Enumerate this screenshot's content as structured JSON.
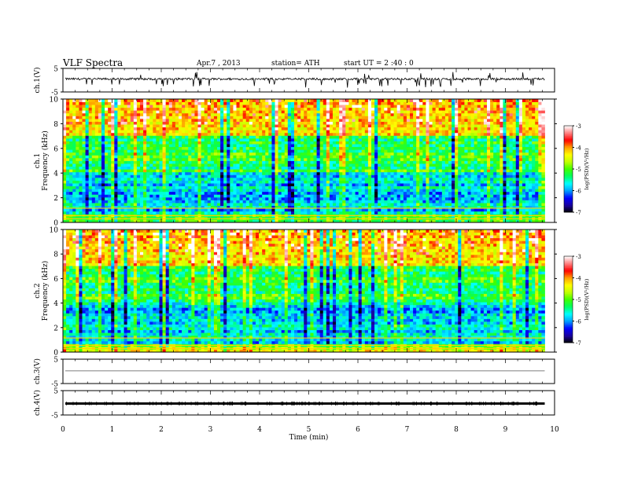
{
  "header": {
    "title": "VLF  Spectra",
    "date": "Apr.7  , 2013",
    "station": "station= ATH",
    "start": "start  UT  =   2  :40 : 0"
  },
  "colors": {
    "background": "#ffffff",
    "foreground": "#000000",
    "colormap": [
      "#000000",
      "#1a00a0",
      "#0000ff",
      "#00a0ff",
      "#00ffff",
      "#00ff60",
      "#40ff00",
      "#c0ff00",
      "#ffff00",
      "#ffa000",
      "#ff0000",
      "#ff8080",
      "#ffffff"
    ]
  },
  "chart_data": [
    {
      "type": "line",
      "id": "ch1-waveform",
      "ylabel": "ch.1(V)",
      "ylim": [
        -5,
        5
      ],
      "yticks": [
        5,
        -5
      ],
      "x": [
        0,
        1,
        2,
        3,
        4,
        5,
        6,
        7,
        8,
        9,
        9.8
      ],
      "baseline": 0.5,
      "note_values": "dense oscillating waveform around ~0.5 V with negative spikes"
    },
    {
      "type": "heatmap",
      "id": "ch1-spectrogram",
      "ylabel": "Frequency (kHz)",
      "channel_label": "ch.1",
      "ylim": [
        0,
        10
      ],
      "yticks": [
        0,
        2,
        4,
        6,
        8,
        10
      ],
      "xlim": [
        0,
        10
      ],
      "data_x_end": 9.8,
      "colorbar": {
        "label": "log(PSD)(V²/Hz)",
        "min": -7,
        "max": -3,
        "ticks": [
          -3,
          -4,
          -5,
          -6,
          -7
        ]
      }
    },
    {
      "type": "heatmap",
      "id": "ch2-spectrogram",
      "ylabel": "Frequency (kHz)",
      "channel_label": "ch.2",
      "ylim": [
        0,
        10
      ],
      "yticks": [
        0,
        2,
        4,
        6,
        8,
        10
      ],
      "xlim": [
        0,
        10
      ],
      "data_x_end": 9.8,
      "colorbar": {
        "label": "log(PSD)(V²/Hz)",
        "min": -7,
        "max": -3,
        "ticks": [
          -3,
          -4,
          -5,
          -6,
          -7
        ]
      }
    },
    {
      "type": "line",
      "id": "ch3-waveform",
      "ylabel": "ch.3(V)",
      "ylim": [
        -5,
        5
      ],
      "yticks": [
        5,
        -5
      ],
      "baseline": 0.2
    },
    {
      "type": "line",
      "id": "ch4-waveform",
      "ylabel": "ch.4(V)",
      "ylim": [
        -5,
        5
      ],
      "yticks": [
        5,
        -5
      ],
      "baseline": -0.3
    }
  ],
  "xaxis": {
    "label": "Time  (min)",
    "xlim": [
      0,
      10
    ],
    "ticks": [
      0,
      1,
      2,
      3,
      4,
      5,
      6,
      7,
      8,
      9,
      10
    ]
  }
}
